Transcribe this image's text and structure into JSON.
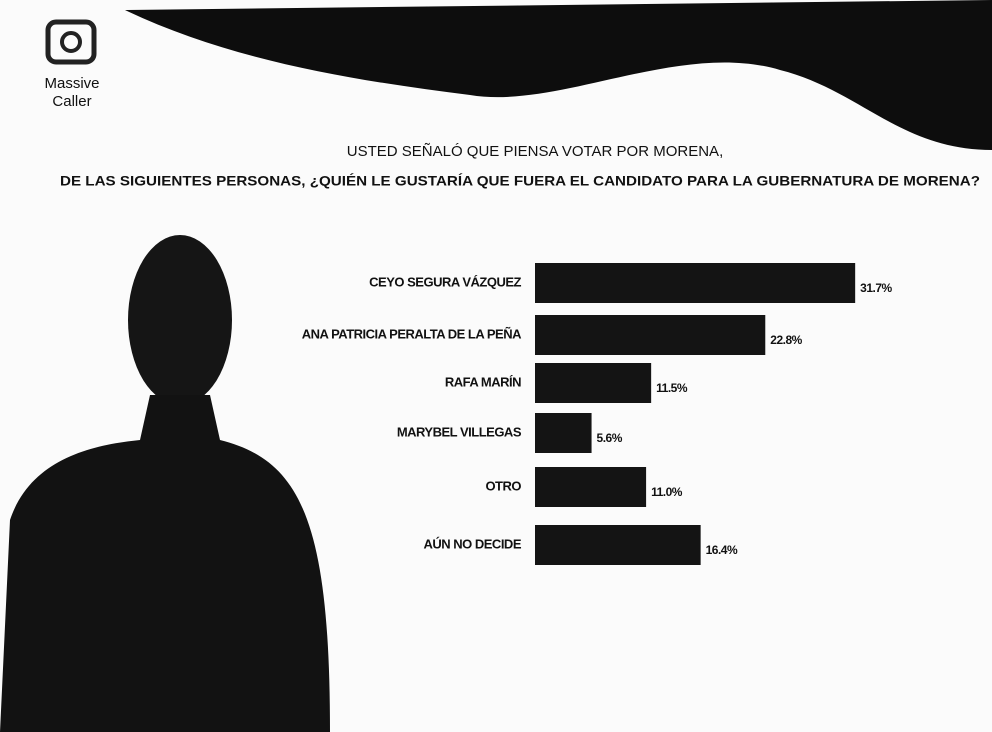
{
  "brand": {
    "line1": "Massive",
    "line2": "Caller"
  },
  "chart_data": {
    "type": "bar",
    "orientation": "horizontal",
    "title": "USTED SEÑALÓ QUE PIENSA VOTAR POR MORENA,",
    "subtitle": "DE LAS SIGUIENTES PERSONAS, ¿QUIÉN LE GUSTARÍA QUE FUERA EL CANDIDATO PARA LA GUBERNATURA DE MORENA?",
    "categories": [
      "CEYO SEGURA VÁZQUEZ",
      "ANA PATRICIA PERALTA DE LA PEÑA",
      "RAFA MARÍN",
      "MARYBEL VILLEGAS",
      "OTRO",
      "AÚN NO DECIDE"
    ],
    "values": [
      31.7,
      22.8,
      11.5,
      5.6,
      11.0,
      16.4
    ],
    "value_labels": [
      "31.7%",
      "22.8%",
      "11.5%",
      "5.6%",
      "11.0%",
      "16.4%"
    ],
    "color": "#141414"
  }
}
